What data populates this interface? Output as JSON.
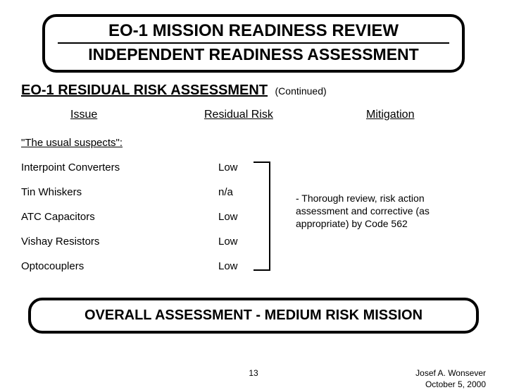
{
  "title": {
    "line1": "EO-1 MISSION READINESS REVIEW",
    "line2": "INDEPENDENT READINESS ASSESSMENT"
  },
  "section": {
    "heading": "EO-1 RESIDUAL RISK ASSESSMENT",
    "continued": "(Continued)"
  },
  "columns": {
    "issue": "Issue",
    "risk": "Residual Risk",
    "mitigation": "Mitigation"
  },
  "suspects_label": "\"The usual suspects\":",
  "rows": [
    {
      "issue": "Interpoint Converters",
      "risk": "Low"
    },
    {
      "issue": "Tin Whiskers",
      "risk": "n/a"
    },
    {
      "issue": "ATC Capacitors",
      "risk": "Low"
    },
    {
      "issue": "Vishay Resistors",
      "risk": "Low"
    },
    {
      "issue": "Optocouplers",
      "risk": "Low"
    }
  ],
  "mitigation_text": "- Thorough review, risk action assessment and corrective (as appropriate) by Code 562",
  "assessment": {
    "prefix": "OVERALL ASSESSMENT  -  ",
    "highlight": "MEDIUM RISK",
    "suffix": " MISSION"
  },
  "footer": {
    "page": "13",
    "author": "Josef A. Wonsever",
    "date": "October 5, 2000"
  }
}
